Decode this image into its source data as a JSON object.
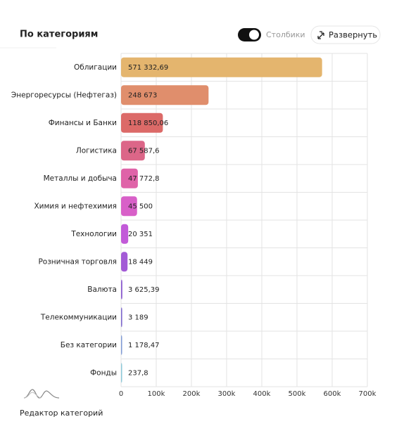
{
  "chart_data": {
    "type": "bar",
    "orientation": "horizontal",
    "title": "По категориям",
    "categories": [
      "Облигации",
      "Энергоресурсы (Нефтегаз)",
      "Финансы и Банки",
      "Логистика",
      "Металлы и добыча",
      "Химия и нефтехимия",
      "Технологии",
      "Розничная торговля",
      "Валюта",
      "Телекоммуникации",
      "Без категории",
      "Фонды"
    ],
    "values": [
      571332.69,
      248673,
      118850.06,
      67587.6,
      47772.8,
      45500,
      20351,
      18449,
      3625.39,
      3189,
      1178.47,
      237.8
    ],
    "value_labels": [
      "571 332,69",
      "248 673",
      "118 850,06",
      "67 587,6",
      "47 772,8",
      "45 500",
      "20 351",
      "18 449",
      "3 625,39",
      "3 189",
      "1 178,47",
      "237,8"
    ],
    "colors": [
      "#e4b56e",
      "#e08e6c",
      "#dc6a68",
      "#dc6688",
      "#df63a8",
      "#d860c8",
      "#c25ad8",
      "#a35bd6",
      "#8d5dd0",
      "#7d68cc",
      "#7f9ad4",
      "#8cc8d8"
    ],
    "xlim": [
      0,
      700000
    ],
    "xticks": [
      0,
      {
        "value": 100000,
        "label": "100k"
      },
      {
        "value": 200000,
        "label": "200k"
      },
      {
        "value": 300000,
        "label": "300k"
      },
      {
        "value": 400000,
        "label": "400k"
      },
      {
        "value": 500000,
        "label": "500k"
      },
      {
        "value": 600000,
        "label": "600k"
      },
      {
        "value": 700000,
        "label": "700k"
      }
    ],
    "grid": true
  },
  "controls": {
    "toggle_label": "Столбики",
    "expand_button": "Развернуть",
    "footer_link": "Редактор категорий"
  }
}
